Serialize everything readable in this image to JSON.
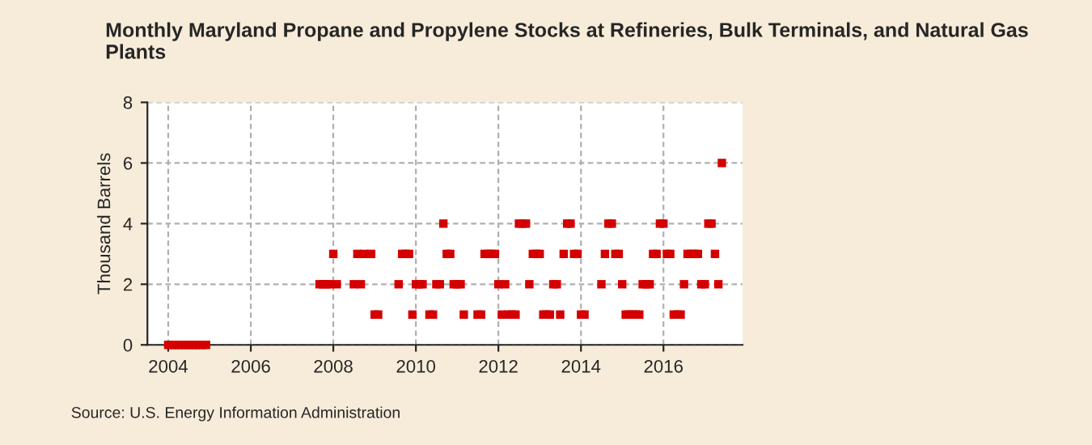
{
  "chart_data": {
    "type": "scatter",
    "title": "Monthly Maryland Propane and Propylene Stocks at Refineries, Bulk Terminals, and Natural Gas Plants",
    "ylabel": "Thousand Barrels",
    "annotations": [
      "Source: U.S. Energy Information Administration"
    ],
    "x": [
      "2004-01",
      "2004-02",
      "2004-03",
      "2004-04",
      "2004-05",
      "2004-06",
      "2004-07",
      "2004-08",
      "2004-09",
      "2004-10",
      "2004-11",
      "2004-12",
      "2007-09",
      "2007-10",
      "2007-11",
      "2007-12",
      "2008-01",
      "2008-02",
      "2008-07",
      "2008-08",
      "2008-09",
      "2008-10",
      "2008-12",
      "2009-01",
      "2009-02",
      "2009-08",
      "2009-09",
      "2009-10",
      "2009-11",
      "2009-12",
      "2010-01",
      "2010-02",
      "2010-03",
      "2010-05",
      "2010-06",
      "2010-07",
      "2010-08",
      "2010-09",
      "2010-10",
      "2010-11",
      "2010-12",
      "2011-01",
      "2011-02",
      "2011-03",
      "2011-07",
      "2011-08",
      "2011-09",
      "2011-10",
      "2011-11",
      "2011-12",
      "2012-01",
      "2012-02",
      "2012-03",
      "2012-04",
      "2012-05",
      "2012-06",
      "2012-07",
      "2012-08",
      "2012-09",
      "2012-10",
      "2012-11",
      "2012-12",
      "2013-01",
      "2013-02",
      "2013-03",
      "2013-04",
      "2013-05",
      "2013-06",
      "2013-07",
      "2013-08",
      "2013-09",
      "2013-10",
      "2013-11",
      "2013-12",
      "2014-01",
      "2014-02",
      "2014-07",
      "2014-08",
      "2014-09",
      "2014-10",
      "2014-11",
      "2014-12",
      "2015-01",
      "2015-02",
      "2015-03",
      "2015-04",
      "2015-05",
      "2015-06",
      "2015-07",
      "2015-08",
      "2015-09",
      "2015-10",
      "2015-11",
      "2015-12",
      "2016-01",
      "2016-02",
      "2016-03",
      "2016-04",
      "2016-05",
      "2016-06",
      "2016-07",
      "2016-08",
      "2016-09",
      "2016-10",
      "2016-11",
      "2016-12",
      "2017-01",
      "2017-02",
      "2017-03",
      "2017-04",
      "2017-05",
      "2017-06"
    ],
    "series": [
      {
        "color": "#d40000",
        "values": [
          0,
          0,
          0,
          0,
          0,
          0,
          0,
          0,
          0,
          0,
          0,
          0,
          2,
          2,
          2,
          2,
          3,
          2,
          2,
          3,
          2,
          3,
          3,
          1,
          1,
          2,
          3,
          3,
          3,
          1,
          2,
          2,
          2,
          1,
          1,
          2,
          2,
          4,
          3,
          3,
          2,
          2,
          2,
          1,
          1,
          1,
          3,
          3,
          3,
          3,
          2,
          1,
          2,
          1,
          1,
          1,
          4,
          4,
          4,
          2,
          3,
          3,
          3,
          1,
          1,
          1,
          2,
          2,
          1,
          3,
          4,
          4,
          3,
          3,
          1,
          1,
          2,
          3,
          4,
          4,
          3,
          3,
          2,
          1,
          1,
          1,
          1,
          1,
          2,
          2,
          2,
          3,
          3,
          4,
          4,
          3,
          3,
          1,
          1,
          1,
          2,
          3,
          3,
          3,
          3,
          2,
          2,
          4,
          4,
          3,
          2,
          6
        ]
      }
    ],
    "xlim": [
      "2003-07",
      "2017-12"
    ],
    "xticks": [
      "2004",
      "2006",
      "2008",
      "2010",
      "2012",
      "2014",
      "2016"
    ],
    "ylim": [
      0,
      8
    ],
    "yticks": [
      0,
      2,
      4,
      6,
      8
    ],
    "grid": true,
    "marker": "square"
  }
}
